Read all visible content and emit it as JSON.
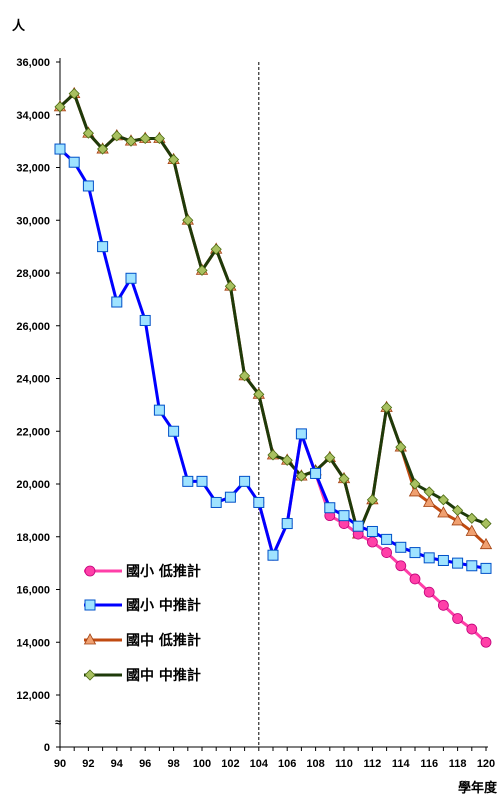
{
  "chart_data": {
    "type": "line",
    "ylabel": "人",
    "xlabel": "學年度",
    "ylim": [
      0,
      36000
    ],
    "yticks": [
      "0",
      "12,000",
      "14,000",
      "16,000",
      "18,000",
      "20,000",
      "22,000",
      "24,000",
      "26,000",
      "28,000",
      "30,000",
      "32,000",
      "34,000",
      "36,000"
    ],
    "xticks": [
      "90",
      "92",
      "94",
      "96",
      "98",
      "100",
      "102",
      "104",
      "106",
      "108",
      "110",
      "112",
      "114",
      "116",
      "118",
      "120"
    ],
    "axis_break": "≈",
    "reference_line_x": 104,
    "grid": false,
    "legend_position": "lower-left",
    "series": [
      {
        "name": "國小 低推計",
        "color": "#ff3fa8",
        "marker": "circle",
        "x": [
          104,
          105,
          106,
          107,
          108,
          109,
          110,
          111,
          112,
          113,
          114,
          115,
          116,
          117,
          118,
          119,
          120
        ],
        "values": [
          19300,
          17300,
          18500,
          21900,
          20400,
          18800,
          18500,
          18100,
          17800,
          17400,
          16900,
          16400,
          15900,
          15400,
          14900,
          14500,
          14000
        ]
      },
      {
        "name": "國小 中推計",
        "color": "#0000ff",
        "marker": "square",
        "x": [
          90,
          91,
          92,
          93,
          94,
          95,
          96,
          97,
          98,
          99,
          100,
          101,
          102,
          103,
          104,
          105,
          106,
          107,
          108,
          109,
          110,
          111,
          112,
          113,
          114,
          115,
          116,
          117,
          118,
          119,
          120
        ],
        "values": [
          32700,
          32200,
          31300,
          29000,
          26900,
          27800,
          26200,
          22800,
          22000,
          20100,
          20100,
          19300,
          19500,
          20100,
          19300,
          17300,
          18500,
          21900,
          20400,
          19100,
          18800,
          18400,
          18200,
          17900,
          17600,
          17400,
          17200,
          17100,
          17000,
          16900,
          16800
        ]
      },
      {
        "name": "國中 低推計",
        "color": "#c04a10",
        "marker": "triangle",
        "x": [
          90,
          91,
          92,
          93,
          94,
          95,
          96,
          97,
          98,
          99,
          100,
          101,
          102,
          103,
          104,
          105,
          106,
          107,
          108,
          109,
          110,
          111,
          112,
          113,
          114,
          115,
          116,
          117,
          118,
          119,
          120
        ],
        "values": [
          34300,
          34800,
          33300,
          32700,
          33200,
          33000,
          33100,
          33100,
          32300,
          30000,
          28100,
          28900,
          27500,
          24100,
          23400,
          21100,
          20900,
          20300,
          20500,
          21000,
          20200,
          18100,
          19400,
          22900,
          21400,
          19700,
          19300,
          18900,
          18600,
          18200,
          17700
        ]
      },
      {
        "name": "國中 中推計",
        "color": "#1e3a0a",
        "marker": "diamond",
        "x": [
          90,
          91,
          92,
          93,
          94,
          95,
          96,
          97,
          98,
          99,
          100,
          101,
          102,
          103,
          104,
          105,
          106,
          107,
          108,
          109,
          110,
          111,
          112,
          113,
          114,
          115,
          116,
          117,
          118,
          119,
          120
        ],
        "values": [
          34300,
          34800,
          33300,
          32700,
          33200,
          33000,
          33100,
          33100,
          32300,
          30000,
          28100,
          28900,
          27500,
          24100,
          23400,
          21100,
          20900,
          20300,
          20500,
          21000,
          20200,
          18100,
          19400,
          22900,
          21400,
          20000,
          19700,
          19400,
          19000,
          18700,
          18500
        ]
      }
    ]
  }
}
